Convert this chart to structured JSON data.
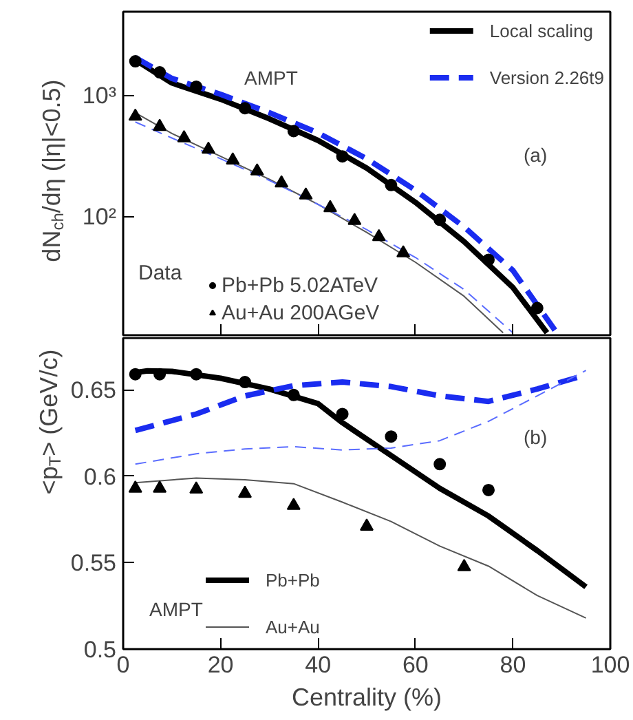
{
  "chart_data": [
    {
      "type": "line",
      "ylabel": "dN$_{ch}$/dη (|η|<0.5)",
      "log": "y",
      "xlim": [
        0,
        100
      ],
      "xticks": [
        0,
        20,
        40,
        60,
        80,
        100
      ],
      "ylim": [
        10.5,
        4900
      ],
      "yticks": [
        {
          "value": 100,
          "label": "10²"
        },
        {
          "value": 1000,
          "label": "10³"
        }
      ],
      "tick_labels": "y",
      "grid": false,
      "legend": "top right",
      "annotations": [
        "AMPT",
        "(a)",
        "Data"
      ],
      "series": [
        {
          "name": "Local scaling",
          "type": "line",
          "line_style": "solid",
          "color": "#000000",
          "x": [
            2.5,
            10,
            20,
            30,
            40,
            50,
            60,
            70,
            80,
            87
          ],
          "values": [
            1960,
            1265,
            930,
            641,
            425,
            251,
            131,
            62,
            26,
            11
          ]
        },
        {
          "name": "Version 2.26t9",
          "type": "line",
          "line_style": "dashed",
          "color": "#1a2cf0",
          "x": [
            2.5,
            10,
            20,
            30,
            40,
            50,
            60,
            70,
            80,
            89
          ],
          "values": [
            2050,
            1380,
            1020,
            720,
            490,
            300,
            165,
            82,
            36,
            11
          ]
        },
        {
          "type": "line",
          "line_style": "solid",
          "color": "#555555",
          "x": [
            2.5,
            10,
            20,
            30,
            40,
            50,
            60,
            70,
            78
          ],
          "values": [
            718,
            485,
            314,
            203,
            126,
            74,
            42,
            22,
            11
          ]
        },
        {
          "type": "line",
          "line_style": "dashed",
          "color": "#5a6cff",
          "x": [
            2.5,
            10,
            20,
            30,
            40,
            50,
            60,
            70,
            80
          ],
          "values": [
            603,
            445,
            300,
            199,
            126,
            78,
            46,
            25,
            11
          ]
        },
        {
          "name": "Pb+Pb 5.02ATeV",
          "type": "scatter",
          "marker": "circle",
          "color": "#000000",
          "x": [
            2.5,
            7.5,
            15,
            25,
            35,
            45,
            55,
            65,
            75,
            85
          ],
          "values": [
            1910,
            1550,
            1180,
            783,
            507,
            314,
            182,
            94,
            44,
            17.6
          ]
        },
        {
          "name": "Au+Au 200AGeV",
          "type": "scatter",
          "marker": "triangle",
          "color": "#000000",
          "x": [
            2.5,
            7.5,
            12.5,
            17.5,
            22.5,
            27.5,
            32.5,
            37.5,
            42.5,
            47.5,
            52.5,
            57.5
          ],
          "values": [
            670,
            552,
            445,
            358,
            292,
            237,
            189,
            150,
            118,
            92.5,
            68,
            50
          ]
        }
      ]
    },
    {
      "type": "line",
      "xlabel": "Centrality (%)",
      "ylabel": "<p$_{T}$> (GeV/c)",
      "xlim": [
        0,
        100
      ],
      "xticks": [
        0,
        20,
        40,
        60,
        80,
        100
      ],
      "ylim": [
        0.5,
        0.68
      ],
      "yticks": [
        {
          "value": 0.5,
          "label": "0.5"
        },
        {
          "value": 0.55,
          "label": "0.55"
        },
        {
          "value": 0.6,
          "label": "0.6"
        },
        {
          "value": 0.65,
          "label": "0.65"
        }
      ],
      "grid": false,
      "legend": "bottom left",
      "annotations": [
        "(b)",
        "AMPT"
      ],
      "series": [
        {
          "name": "Pb+Pb",
          "type": "line",
          "line_style": "solid",
          "color": "#000000",
          "x": [
            2.5,
            5,
            10,
            20,
            30,
            40,
            45,
            55,
            65,
            75,
            85,
            95
          ],
          "values": [
            0.66,
            0.661,
            0.6607,
            0.6567,
            0.6505,
            0.642,
            0.631,
            0.612,
            0.593,
            0.577,
            0.557,
            0.536
          ]
        },
        {
          "name": "Au+Au",
          "type": "line",
          "line_style": "solid",
          "color": "#555555",
          "x": [
            2.5,
            15,
            25,
            35,
            45,
            55,
            65,
            75,
            85,
            95
          ],
          "values": [
            0.5963,
            0.599,
            0.598,
            0.5957,
            0.585,
            0.5738,
            0.5596,
            0.548,
            0.531,
            0.518
          ]
        },
        {
          "type": "line",
          "line_style": "dashed",
          "color": "#1a2cf0",
          "x": [
            2.5,
            15,
            25,
            35,
            45,
            55,
            65,
            75,
            85,
            95
          ],
          "values": [
            0.6265,
            0.636,
            0.6465,
            0.6524,
            0.6545,
            0.6519,
            0.6465,
            0.6433,
            0.6505,
            0.6586
          ]
        },
        {
          "type": "line",
          "line_style": "dashed",
          "color": "#5a6cff",
          "x": [
            2.5,
            15,
            25,
            35,
            45,
            55,
            65,
            75,
            85,
            95
          ],
          "values": [
            0.607,
            0.613,
            0.6158,
            0.6171,
            0.6152,
            0.6163,
            0.6206,
            0.6318,
            0.6465,
            0.6612
          ]
        },
        {
          "type": "scatter",
          "marker": "circle",
          "color": "#000000",
          "x": [
            2.5,
            7.5,
            15,
            25,
            35,
            45,
            55,
            65,
            75
          ],
          "values": [
            0.659,
            0.659,
            0.659,
            0.6545,
            0.647,
            0.636,
            0.623,
            0.607,
            0.592
          ]
        },
        {
          "type": "scatter",
          "marker": "triangle",
          "color": "#000000",
          "x": [
            2.5,
            7.5,
            15,
            25,
            35,
            50,
            70
          ],
          "values": [
            0.593,
            0.593,
            0.5925,
            0.59,
            0.583,
            0.571,
            0.5476
          ]
        }
      ]
    }
  ]
}
